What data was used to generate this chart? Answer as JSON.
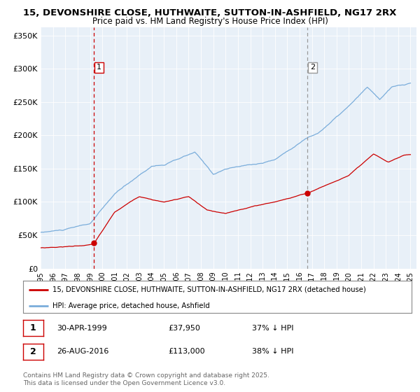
{
  "title1": "15, DEVONSHIRE CLOSE, HUTHWAITE, SUTTON-IN-ASHFIELD, NG17 2RX",
  "title2": "Price paid vs. HM Land Registry's House Price Index (HPI)",
  "ylabel_ticks": [
    "£0",
    "£50K",
    "£100K",
    "£150K",
    "£200K",
    "£250K",
    "£300K",
    "£350K"
  ],
  "ytick_vals": [
    0,
    50000,
    100000,
    150000,
    200000,
    250000,
    300000,
    350000
  ],
  "ylim": [
    0,
    362000
  ],
  "xlim_start": 1995.0,
  "xlim_end": 2025.5,
  "bg_color": "#e8f0f8",
  "line1_color": "#cc0000",
  "line2_color": "#7aaddb",
  "vline1_x": 1999.33,
  "vline1_color": "#cc0000",
  "vline2_x": 2016.65,
  "vline2_color": "#999999",
  "marker1_x": 1999.33,
  "marker1_y": 37950,
  "marker2_x": 2016.65,
  "marker2_y": 113000,
  "legend_line1": "15, DEVONSHIRE CLOSE, HUTHWAITE, SUTTON-IN-ASHFIELD, NG17 2RX (detached house)",
  "legend_line2": "HPI: Average price, detached house, Ashfield",
  "footnote3": "Contains HM Land Registry data © Crown copyright and database right 2025.",
  "footnote4": "This data is licensed under the Open Government Licence v3.0.",
  "xtick_years": [
    1995,
    1996,
    1997,
    1998,
    1999,
    2000,
    2001,
    2002,
    2003,
    2004,
    2005,
    2006,
    2007,
    2008,
    2009,
    2010,
    2011,
    2012,
    2013,
    2014,
    2015,
    2016,
    2017,
    2018,
    2019,
    2020,
    2021,
    2022,
    2023,
    2024,
    2025
  ],
  "fig_width": 6.0,
  "fig_height": 5.6
}
